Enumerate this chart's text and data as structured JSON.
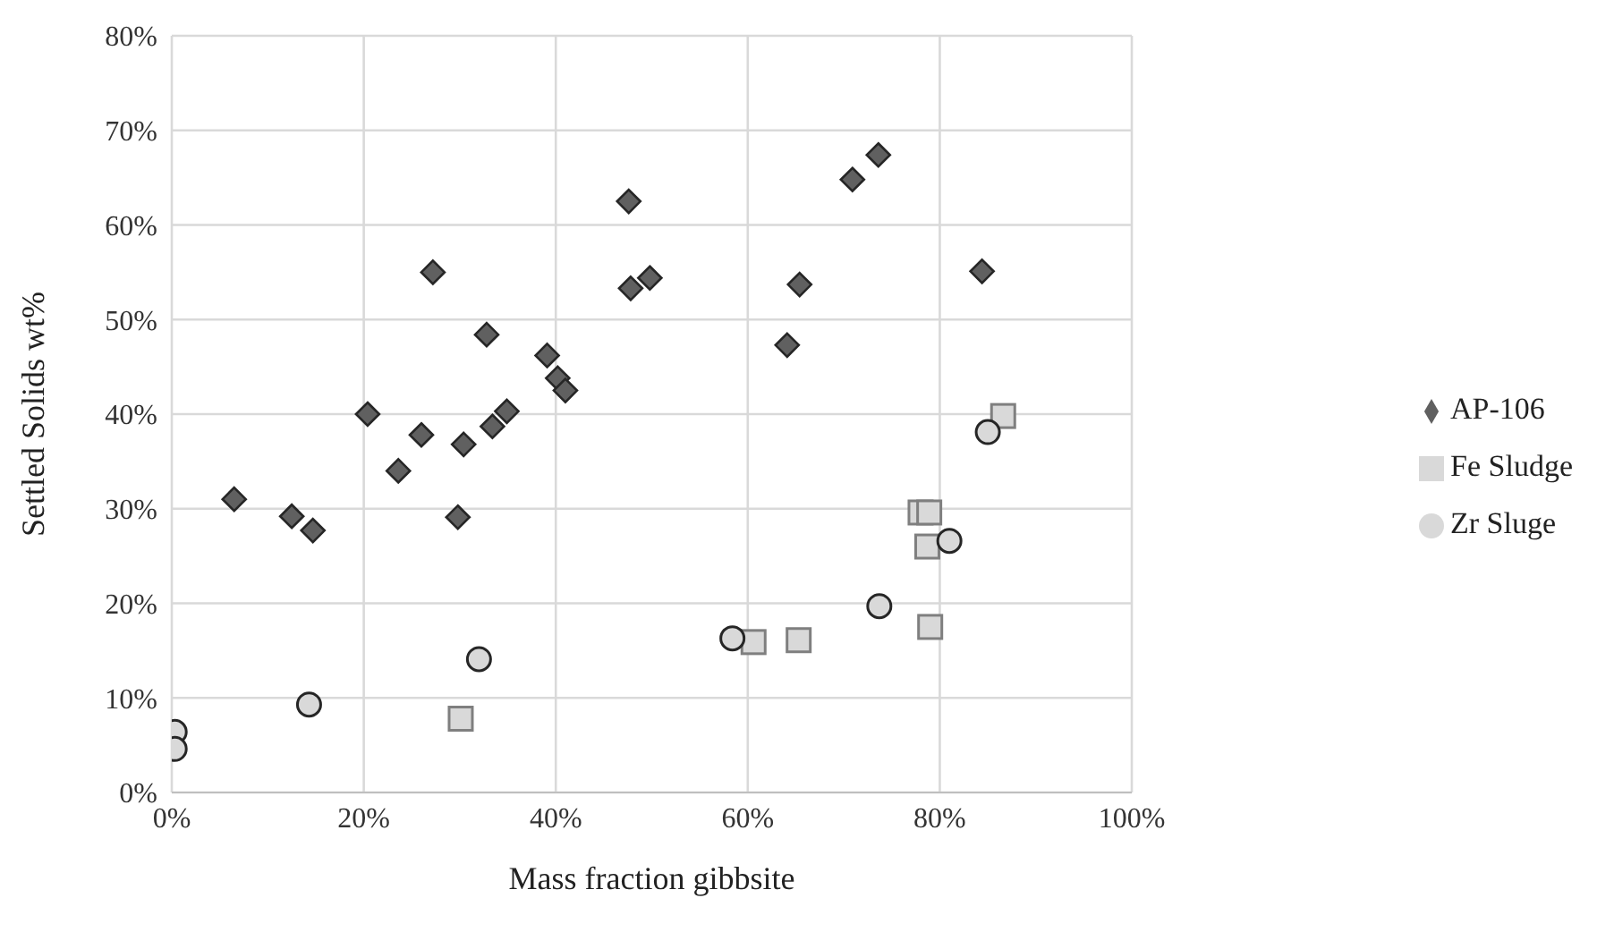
{
  "chart_data": {
    "type": "scatter",
    "xlabel": "Mass fraction gibbsite",
    "ylabel": "Settled Solids wt%",
    "xlim": [
      0,
      100
    ],
    "xticks": [
      {
        "value": 0,
        "label": "0%"
      },
      {
        "value": 20,
        "label": "20%"
      },
      {
        "value": 40,
        "label": "40%"
      },
      {
        "value": 60,
        "label": "60%"
      },
      {
        "value": 80,
        "label": "80%"
      },
      {
        "value": 100,
        "label": "100%"
      }
    ],
    "ylim": [
      0,
      80
    ],
    "yticks": [
      {
        "value": 0,
        "label": "0%"
      },
      {
        "value": 10,
        "label": "10%"
      },
      {
        "value": 20,
        "label": "20%"
      },
      {
        "value": 30,
        "label": "30%"
      },
      {
        "value": 40,
        "label": "40%"
      },
      {
        "value": 50,
        "label": "50%"
      },
      {
        "value": 60,
        "label": "60%"
      },
      {
        "value": 70,
        "label": "70%"
      },
      {
        "value": 80,
        "label": "80%"
      }
    ],
    "grid": true,
    "legend": "right",
    "series": [
      {
        "name": "AP-106",
        "color": "#606060",
        "marker": "diamond",
        "x": [
          6.5,
          12.5,
          14.7,
          20.4,
          23.6,
          26,
          27.2,
          29.8,
          30.4,
          32.8,
          33.4,
          34.9,
          39.1,
          40.2,
          41,
          47.6,
          47.8,
          49.8,
          64.1,
          65.4,
          70.9,
          73.6,
          84.4
        ],
        "values": [
          31,
          29.2,
          27.7,
          40,
          34,
          37.8,
          55,
          29.1,
          36.8,
          48.4,
          38.7,
          40.3,
          46.2,
          43.8,
          42.5,
          62.5,
          53.3,
          54.4,
          47.3,
          53.7,
          64.8,
          67.4,
          55.1
        ]
      },
      {
        "name": "Fe Sludge",
        "color": "#d9d9d9",
        "marker": "square",
        "x": [
          30.1,
          60.6,
          65.3,
          78,
          78.9,
          78.7,
          79,
          86.6
        ],
        "values": [
          7.8,
          15.9,
          16.1,
          29.6,
          29.6,
          26,
          17.5,
          39.8
        ]
      },
      {
        "name": "Zr Sluge",
        "color": "#d9d9d9",
        "marker": "circle",
        "x": [
          0.3,
          0.3,
          14.3,
          32,
          58.4,
          73.7,
          81,
          85
        ],
        "values": [
          6.4,
          4.6,
          9.3,
          14.1,
          16.3,
          19.7,
          26.6,
          38.1
        ]
      }
    ]
  }
}
